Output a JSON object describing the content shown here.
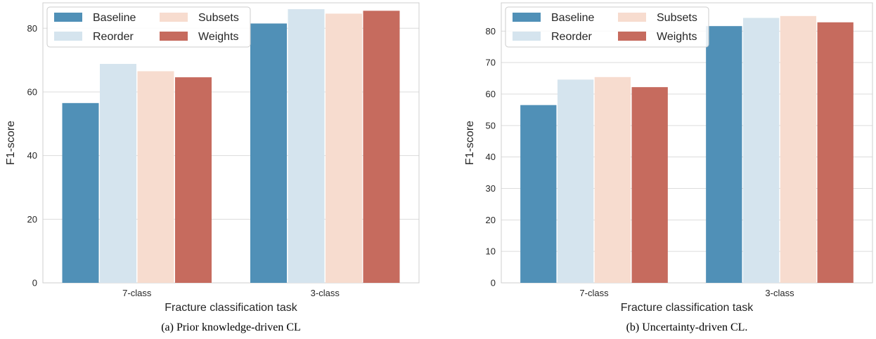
{
  "palette": {
    "Baseline": "#5090b7",
    "Reorder": "#d5e4ee",
    "Subsets": "#f7dccf",
    "Weights": "#c66b5e",
    "grid": "#dcdcdc",
    "spine": "#cfcfcf"
  },
  "chart_data": [
    {
      "type": "bar",
      "caption": "(a) Prior knowledge-driven CL",
      "xlabel": "Fracture classification task",
      "ylabel": "F1-score",
      "ylim": [
        0,
        88
      ],
      "yticks": [
        0,
        20,
        40,
        60,
        80
      ],
      "grid": true,
      "legend": "top-left",
      "categories": [
        "7-class",
        "3-class"
      ],
      "series": [
        {
          "name": "Baseline",
          "values": [
            56.5,
            81.5
          ]
        },
        {
          "name": "Reorder",
          "values": [
            68.8,
            86.0
          ]
        },
        {
          "name": "Subsets",
          "values": [
            66.5,
            84.6
          ]
        },
        {
          "name": "Weights",
          "values": [
            64.6,
            85.5
          ]
        }
      ]
    },
    {
      "type": "bar",
      "caption": "(b) Uncertainty-driven CL.",
      "xlabel": "Fracture classification task",
      "ylabel": "F1-score",
      "ylim": [
        0,
        89
      ],
      "yticks": [
        0,
        10,
        20,
        30,
        40,
        50,
        60,
        70,
        80
      ],
      "grid": true,
      "legend": "top-left",
      "categories": [
        "7-class",
        "3-class"
      ],
      "series": [
        {
          "name": "Baseline",
          "values": [
            56.5,
            81.6
          ]
        },
        {
          "name": "Reorder",
          "values": [
            64.6,
            84.2
          ]
        },
        {
          "name": "Subsets",
          "values": [
            65.4,
            84.8
          ]
        },
        {
          "name": "Weights",
          "values": [
            62.2,
            82.8
          ]
        }
      ]
    }
  ]
}
